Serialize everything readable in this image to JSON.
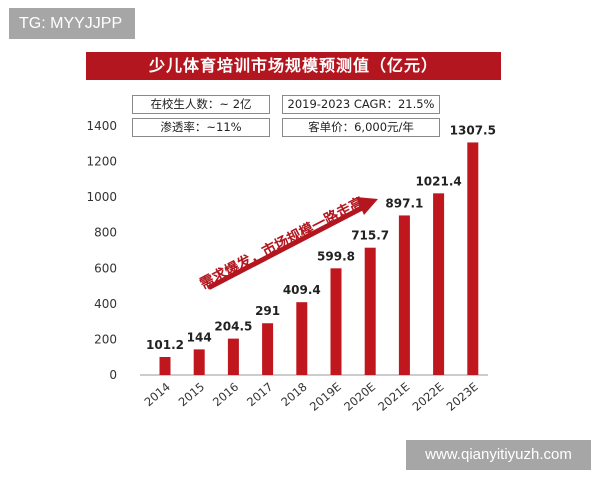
{
  "watermarks": {
    "top": "TG: MYYJJPP",
    "bottom": "www.qianyitiyuzh.com"
  },
  "info": {
    "students": "在校生人数：~ 2亿",
    "cagr": "2019-2023 CAGR：21.5%",
    "penetration": "渗透率：~11%",
    "price": "客单价：6,000元/年"
  },
  "colors": {
    "bar": "#c0161e",
    "title_bg": "#b3161e",
    "arrow": "#b3161e"
  },
  "chart_data": {
    "type": "bar",
    "title": "少儿体育培训市场规模预测值（亿元）",
    "categories": [
      "2014",
      "2015",
      "2016",
      "2017",
      "2018",
      "2019E",
      "2020E",
      "2021E",
      "2022E",
      "2023E"
    ],
    "values": [
      101.2,
      144,
      204.5,
      291,
      409.4,
      599.8,
      715.7,
      897.1,
      1021.4,
      1307.5
    ],
    "value_labels": [
      "101.2",
      "144",
      "204.5",
      "291",
      "409.4",
      "599.8",
      "715.7",
      "897.1",
      "1021.4",
      "1307.5"
    ],
    "yticks": [
      0,
      200,
      400,
      600,
      800,
      1000,
      1200,
      1400
    ],
    "ylim": [
      0,
      1400
    ],
    "xlabel": "",
    "ylabel": "",
    "grid": false,
    "annotation": "需求爆发，市场规模一路走高"
  }
}
